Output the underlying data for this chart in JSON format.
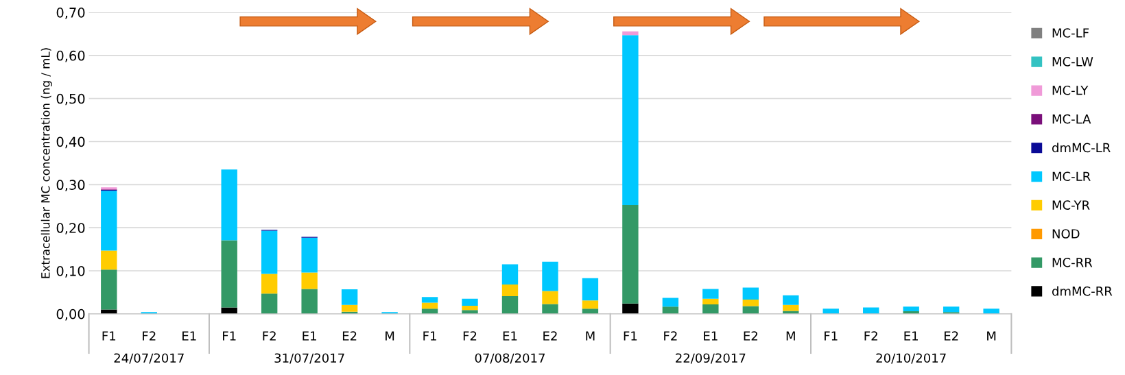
{
  "chart_data": {
    "type": "bar",
    "stacked": true,
    "ylabel": "Extracellular MC concentration (ng / mL)",
    "categories": [
      "F1",
      "F2",
      "E1",
      "F1",
      "F2",
      "E1",
      "E2",
      "M",
      "F1",
      "F2",
      "E1",
      "E2",
      "M",
      "F1",
      "F2",
      "E1",
      "E2",
      "M",
      "F1",
      "F2",
      "E1",
      "E2",
      "M"
    ],
    "annotations": [
      "24/07/2017",
      "31/07/2017",
      "07/08/2017",
      "22/09/2017",
      "20/10/2017"
    ],
    "series": [
      {
        "name": "dmMC-RR",
        "color": "#000000",
        "values": [
          0.01,
          0,
          0,
          0.015,
          null,
          null,
          0,
          0,
          0,
          0,
          0,
          0,
          0,
          0.024,
          0,
          0,
          0,
          0,
          0,
          0,
          0,
          0,
          0
        ]
      },
      {
        "name": "MC-RR",
        "color": "#339966",
        "values": [
          0.093,
          0,
          0,
          0.156,
          0.047,
          0.058,
          0.005,
          0,
          0.012,
          0.009,
          0.041,
          0.023,
          0.012,
          0.229,
          0.017,
          0.022,
          0.018,
          0.007,
          0,
          0,
          0.006,
          0.004,
          0
        ]
      },
      {
        "name": "NOD",
        "color": "#ff9900",
        "values": [
          0,
          0,
          0,
          0,
          0,
          0,
          0,
          0,
          0,
          0,
          0,
          0,
          0,
          0,
          0,
          0,
          0,
          0,
          0,
          0,
          0,
          0,
          0
        ]
      },
      {
        "name": "MC-YR",
        "color": "#ffcc00",
        "values": [
          0.044,
          0,
          0,
          0,
          0.046,
          0.038,
          0.016,
          0,
          0.014,
          0.01,
          0.027,
          0.03,
          0.019,
          0,
          0,
          0.013,
          0.015,
          0.014,
          0,
          0,
          0,
          0,
          0
        ]
      },
      {
        "name": "MC-LR",
        "color": "#00c8ff",
        "values": [
          0.139,
          0.004,
          0,
          0.164,
          0.1,
          0.081,
          0.036,
          0.004,
          0.013,
          0.016,
          0.047,
          0.068,
          0.052,
          0.394,
          0.02,
          0.023,
          0.028,
          0.022,
          0.012,
          0.015,
          0.011,
          0.013,
          0.012
        ]
      },
      {
        "name": "dmMC-LR",
        "color": "#0a0a96",
        "values": [
          0.002,
          0,
          0,
          0,
          0.002,
          0.002,
          0,
          0,
          0,
          0,
          0,
          0,
          0,
          0,
          0,
          0,
          0,
          0,
          0,
          0,
          0,
          0,
          0
        ]
      },
      {
        "name": "MC-LA",
        "color": "#7a0f7a",
        "values": [
          0.001,
          0,
          0,
          0,
          0,
          0,
          0,
          0,
          0,
          0,
          0,
          0,
          0,
          0,
          0,
          0,
          0,
          0,
          0,
          0,
          0,
          0,
          0
        ]
      },
      {
        "name": "MC-LY",
        "color": "#f09ad8",
        "values": [
          0.005,
          0,
          0,
          0,
          0,
          0,
          0,
          0,
          0,
          0,
          0,
          0,
          0,
          0.009,
          0,
          0,
          0,
          0,
          0,
          0,
          0,
          0,
          0
        ]
      },
      {
        "name": "MC-LW",
        "color": "#33c2c2",
        "values": [
          0,
          0,
          0,
          0,
          0,
          0,
          0,
          0,
          0,
          0,
          0,
          0,
          0,
          0,
          0,
          0,
          0,
          0,
          0,
          0,
          0,
          0,
          0
        ]
      },
      {
        "name": "MC-LF",
        "color": "#808080",
        "values": [
          0,
          0,
          0,
          0,
          0,
          0,
          0,
          0,
          0,
          0,
          0,
          0,
          0,
          0,
          0,
          0,
          0,
          0,
          0,
          0,
          0,
          0,
          0
        ]
      }
    ],
    "ylim": [
      0,
      0.7
    ],
    "yticks": [
      {
        "value": 0,
        "label": "0,00"
      },
      {
        "value": 0.1,
        "label": "0,10"
      },
      {
        "value": 0.2,
        "label": "0,20"
      },
      {
        "value": 0.3,
        "label": "0,30"
      },
      {
        "value": 0.4,
        "label": "0,40"
      },
      {
        "value": 0.5,
        "label": "0,50"
      },
      {
        "value": 0.6,
        "label": "0,60"
      },
      {
        "value": 0.7,
        "label": "0,70"
      }
    ],
    "grid": "y",
    "legend": "right"
  }
}
